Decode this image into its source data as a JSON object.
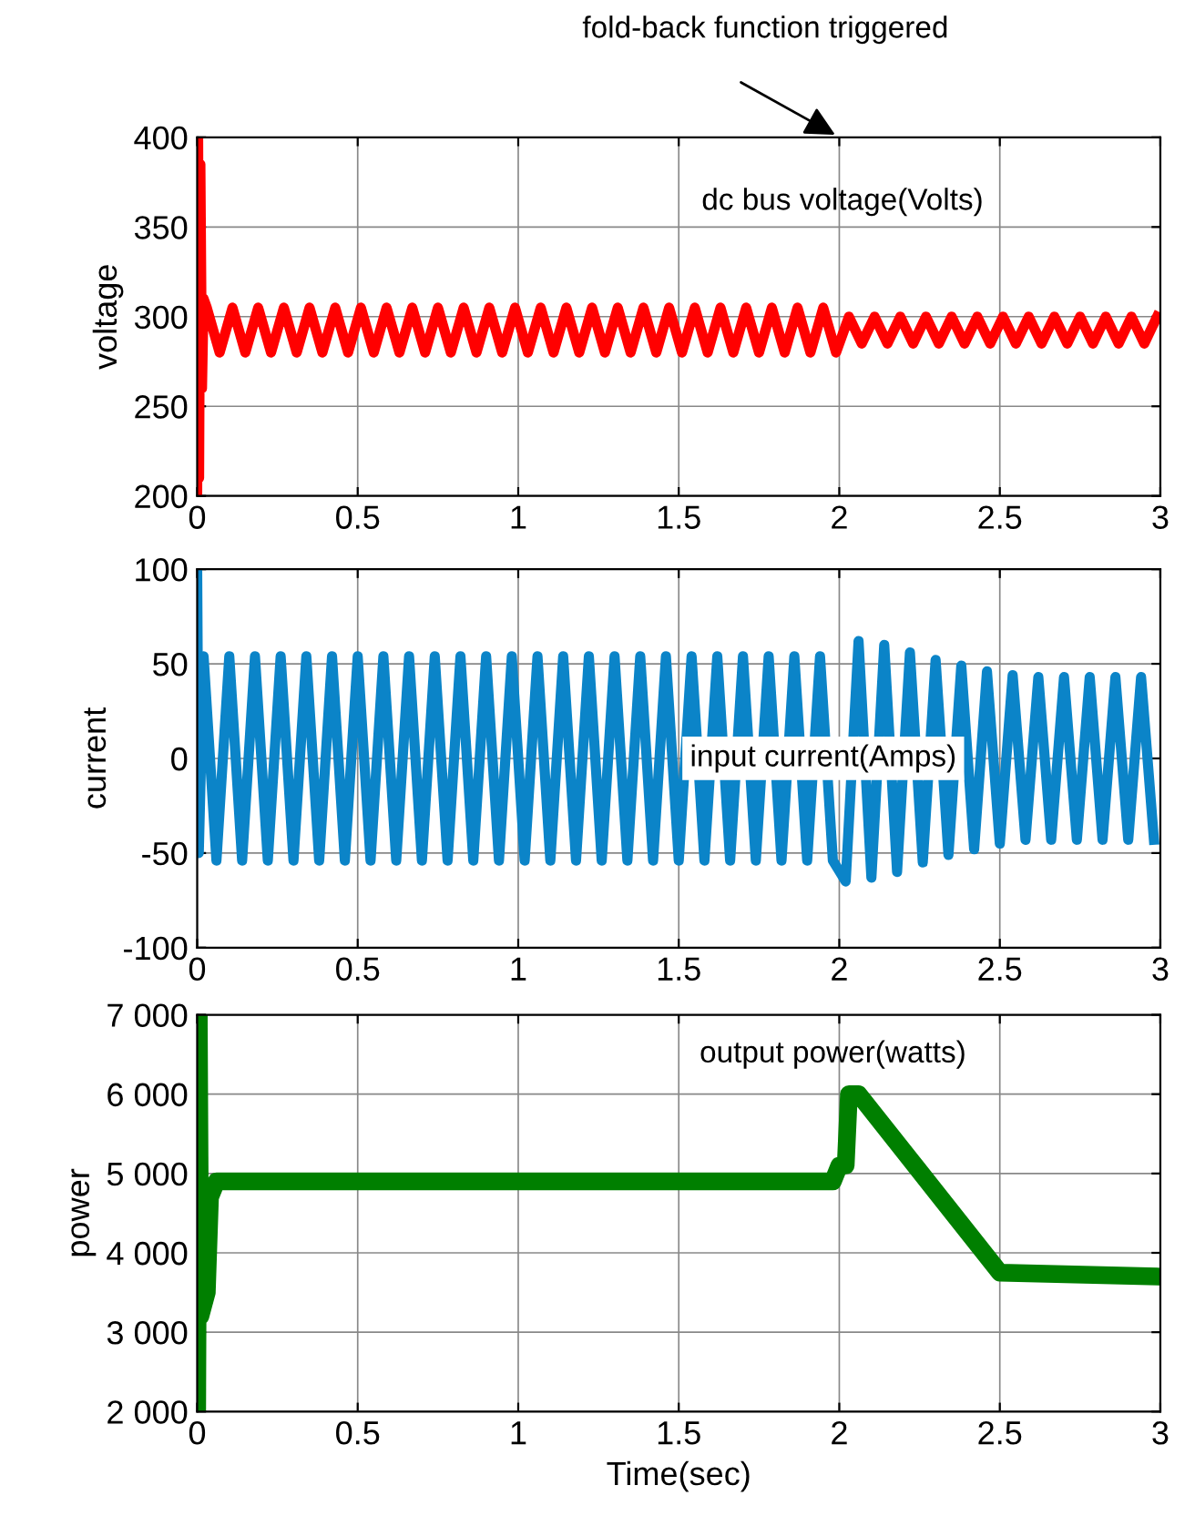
{
  "chart_data": [
    {
      "type": "line",
      "ylabel": "voltage",
      "grid": true,
      "xlim": [
        0,
        3
      ],
      "ylim": [
        200,
        400
      ],
      "xticks": [
        0,
        0.5,
        1,
        1.5,
        2,
        2.5,
        3
      ],
      "yticks": [
        200,
        250,
        300,
        350,
        400
      ],
      "annotations": [
        "fold-back function triggered",
        "dc bus voltage(Volts)"
      ],
      "series": [
        {
          "color": "#ff0000",
          "x": [
            0,
            0.003,
            0.006,
            0.01,
            0.015,
            0.02,
            0.03,
            0.07,
            0.11,
            0.15,
            0.19,
            0.23,
            0.27,
            0.31,
            0.35,
            0.39,
            0.43,
            0.47,
            0.51,
            0.55,
            0.59,
            0.63,
            0.67,
            0.71,
            0.75,
            0.79,
            0.83,
            0.87,
            0.91,
            0.95,
            0.99,
            1.03,
            1.07,
            1.11,
            1.15,
            1.19,
            1.23,
            1.27,
            1.31,
            1.35,
            1.39,
            1.43,
            1.47,
            1.51,
            1.55,
            1.59,
            1.63,
            1.67,
            1.71,
            1.75,
            1.79,
            1.83,
            1.87,
            1.91,
            1.95,
            1.99,
            2.03,
            2.07,
            2.11,
            2.15,
            2.19,
            2.23,
            2.27,
            2.31,
            2.35,
            2.39,
            2.43,
            2.47,
            2.51,
            2.55,
            2.59,
            2.63,
            2.67,
            2.71,
            2.75,
            2.79,
            2.83,
            2.87,
            2.91,
            2.95,
            2.99
          ],
          "values": [
            200,
            400,
            210,
            385,
            260,
            310,
            305,
            280,
            305,
            280,
            305,
            280,
            305,
            280,
            305,
            280,
            305,
            280,
            305,
            280,
            305,
            280,
            305,
            280,
            305,
            280,
            305,
            280,
            305,
            280,
            305,
            280,
            305,
            280,
            305,
            280,
            305,
            280,
            305,
            280,
            305,
            280,
            305,
            280,
            305,
            280,
            305,
            280,
            305,
            280,
            305,
            280,
            305,
            280,
            305,
            280,
            300,
            285,
            300,
            285,
            300,
            285,
            300,
            285,
            300,
            285,
            300,
            285,
            300,
            285,
            300,
            285,
            300,
            285,
            300,
            285,
            300,
            285,
            300,
            285,
            300
          ]
        }
      ]
    },
    {
      "type": "line",
      "ylabel": "current",
      "grid": true,
      "xlim": [
        0,
        3
      ],
      "ylim": [
        -100,
        100
      ],
      "xticks": [
        0,
        0.5,
        1,
        1.5,
        2,
        2.5,
        3
      ],
      "yticks": [
        -100,
        -50,
        0,
        50,
        100
      ],
      "annotations": [
        "input current(Amps)"
      ],
      "series": [
        {
          "color": "#0b84c8",
          "x": [
            0,
            0.005,
            0.02,
            0.06,
            0.1,
            0.14,
            0.18,
            0.22,
            0.26,
            0.3,
            0.34,
            0.38,
            0.42,
            0.46,
            0.5,
            0.54,
            0.58,
            0.62,
            0.66,
            0.7,
            0.74,
            0.78,
            0.82,
            0.86,
            0.9,
            0.94,
            0.98,
            1.02,
            1.06,
            1.1,
            1.14,
            1.18,
            1.22,
            1.26,
            1.3,
            1.34,
            1.38,
            1.42,
            1.46,
            1.5,
            1.54,
            1.58,
            1.62,
            1.66,
            1.7,
            1.74,
            1.78,
            1.82,
            1.86,
            1.9,
            1.94,
            1.98,
            2.02,
            2.06,
            2.1,
            2.14,
            2.18,
            2.22,
            2.26,
            2.3,
            2.34,
            2.38,
            2.42,
            2.46,
            2.5,
            2.54,
            2.58,
            2.62,
            2.66,
            2.7,
            2.74,
            2.78,
            2.82,
            2.86,
            2.9,
            2.94,
            2.98
          ],
          "values": [
            100,
            -50,
            54,
            -54,
            54,
            -54,
            54,
            -54,
            54,
            -54,
            54,
            -54,
            54,
            -54,
            54,
            -54,
            54,
            -54,
            54,
            -54,
            54,
            -54,
            54,
            -54,
            54,
            -54,
            54,
            -54,
            54,
            -54,
            54,
            -54,
            54,
            -54,
            54,
            -54,
            54,
            -54,
            54,
            -54,
            54,
            -54,
            54,
            -54,
            54,
            -54,
            54,
            -54,
            54,
            -54,
            54,
            -54,
            -65,
            62,
            -63,
            60,
            -60,
            56,
            -55,
            52,
            -51,
            49,
            -48,
            46,
            -45,
            44,
            -43,
            43,
            -43,
            43,
            -43,
            43,
            -43,
            43,
            -43,
            43,
            -43
          ]
        }
      ]
    },
    {
      "type": "line",
      "ylabel": "power",
      "xlabel": "Time(sec)",
      "grid": true,
      "xlim": [
        0,
        3
      ],
      "ylim": [
        2000,
        7000
      ],
      "xticks": [
        0,
        0.5,
        1,
        1.5,
        2,
        2.5,
        3
      ],
      "yticks": [
        {
          "value": 2000,
          "label": "2 000"
        },
        {
          "value": 3000,
          "label": "3 000"
        },
        {
          "value": 4000,
          "label": "4 000"
        },
        {
          "value": 5000,
          "label": "5 000"
        },
        {
          "value": 6000,
          "label": "6 000"
        },
        {
          "value": 7000,
          "label": "7 000"
        }
      ],
      "annotations": [
        "output power(watts)"
      ],
      "series": [
        {
          "color": "#007f00",
          "x": [
            0,
            0.005,
            0.01,
            0.03,
            0.04,
            0.06,
            1.98,
            2.0,
            2.02,
            2.03,
            2.06,
            2.5,
            3.0
          ],
          "values": [
            2000,
            7000,
            3200,
            3500,
            4700,
            4900,
            4900,
            5100,
            5100,
            6000,
            6000,
            3750,
            3700
          ]
        }
      ]
    }
  ]
}
